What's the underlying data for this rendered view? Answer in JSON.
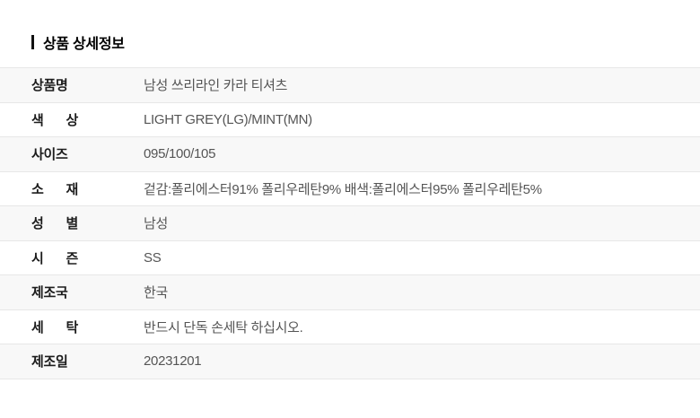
{
  "page": {
    "background": "#ffffff"
  },
  "header": {
    "title": "상품 상세정보",
    "accent_bar_color": "#111111"
  },
  "table": {
    "stripe_color": "#f8f8f8",
    "border_color": "#e7e7e7",
    "label_color": "#1c1c1c",
    "value_color": "#555555",
    "rows": [
      {
        "label": "상품명",
        "value": "남성 쓰리라인 카라 티셔츠"
      },
      {
        "label": "색 상",
        "value": "LIGHT GREY(LG)/MINT(MN)"
      },
      {
        "label": "사이즈",
        "value": "095/100/105"
      },
      {
        "label": "소 재",
        "value": "겉감:폴리에스터91% 폴리우레탄9% 배색:폴리에스터95% 폴리우레탄5%"
      },
      {
        "label": "성 별",
        "value": "남성"
      },
      {
        "label": "시 즌",
        "value": "SS"
      },
      {
        "label": "제조국",
        "value": "한국"
      },
      {
        "label": "세 탁",
        "value": "반드시 단독 손세탁 하십시오."
      },
      {
        "label": "제조일",
        "value": "20231201"
      }
    ]
  }
}
